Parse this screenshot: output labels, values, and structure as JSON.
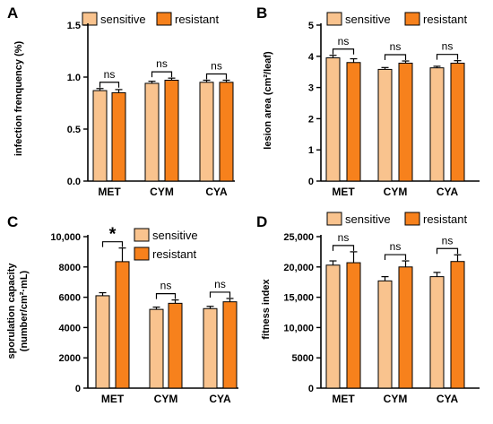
{
  "legend": {
    "sensitive": "sensitive",
    "resistant": "resistant"
  },
  "colors": {
    "sensitive": "#F9C38E",
    "resistant": "#F7811C"
  },
  "chart_data": [
    {
      "panel": "A",
      "type": "bar",
      "ylabel": "infection frenquency (%)",
      "ylim": [
        0.0,
        1.5
      ],
      "yticks": [
        0.0,
        0.5,
        1.0,
        1.5
      ],
      "ytick_labels": [
        "0.0",
        "0.5",
        "1.0",
        "1.5"
      ],
      "categories": [
        "MET",
        "CYM",
        "CYA"
      ],
      "series": [
        {
          "name": "sensitive",
          "values": [
            0.87,
            0.94,
            0.95
          ],
          "errors": [
            0.02,
            0.02,
            0.02
          ]
        },
        {
          "name": "resistant",
          "values": [
            0.85,
            0.97,
            0.95
          ],
          "errors": [
            0.03,
            0.02,
            0.02
          ]
        }
      ],
      "significance": [
        "ns",
        "ns",
        "ns"
      ],
      "legend_position": "top"
    },
    {
      "panel": "B",
      "type": "bar",
      "ylabel": "lesion area (cm²/leaf)",
      "ylim": [
        0,
        5
      ],
      "yticks": [
        0,
        1,
        2,
        3,
        4,
        5
      ],
      "ytick_labels": [
        "0",
        "1",
        "2",
        "3",
        "4",
        "5"
      ],
      "categories": [
        "MET",
        "CYM",
        "CYA"
      ],
      "series": [
        {
          "name": "sensitive",
          "values": [
            3.95,
            3.58,
            3.63
          ],
          "errors": [
            0.08,
            0.06,
            0.05
          ]
        },
        {
          "name": "resistant",
          "values": [
            3.8,
            3.78,
            3.78
          ],
          "errors": [
            0.12,
            0.07,
            0.08
          ]
        }
      ],
      "significance": [
        "ns",
        "ns",
        "ns"
      ],
      "legend_position": "top"
    },
    {
      "panel": "C",
      "type": "bar",
      "ylabel_line1": "sporulation capacity",
      "ylabel_line2": "(number/cm²·mL)",
      "ylim": [
        0,
        10000
      ],
      "yticks": [
        0,
        2000,
        4000,
        6000,
        8000,
        10000
      ],
      "ytick_labels": [
        "0",
        "2000",
        "4000",
        "6000",
        "8000",
        "10,000"
      ],
      "categories": [
        "MET",
        "CYM",
        "CYA"
      ],
      "series": [
        {
          "name": "sensitive",
          "values": [
            6100,
            5200,
            5250
          ],
          "errors": [
            200,
            150,
            150
          ]
        },
        {
          "name": "resistant",
          "values": [
            8350,
            5600,
            5700
          ],
          "errors": [
            900,
            220,
            220
          ]
        }
      ],
      "significance": [
        "*",
        "ns",
        "ns"
      ],
      "legend_position": "top-right"
    },
    {
      "panel": "D",
      "type": "bar",
      "ylabel": "fitness index",
      "ylim": [
        0,
        25000
      ],
      "yticks": [
        0,
        5000,
        10000,
        15000,
        20000,
        25000
      ],
      "ytick_labels": [
        "0",
        "5000",
        "10,000",
        "15,000",
        "20,000",
        "25,000"
      ],
      "categories": [
        "MET",
        "CYM",
        "CYA"
      ],
      "series": [
        {
          "name": "sensitive",
          "values": [
            20300,
            17700,
            18400
          ],
          "errors": [
            700,
            700,
            700
          ]
        },
        {
          "name": "resistant",
          "values": [
            20700,
            20000,
            20900
          ],
          "errors": [
            1800,
            1000,
            1100
          ]
        }
      ],
      "significance": [
        "ns",
        "ns",
        "ns"
      ],
      "legend_position": "top"
    }
  ]
}
